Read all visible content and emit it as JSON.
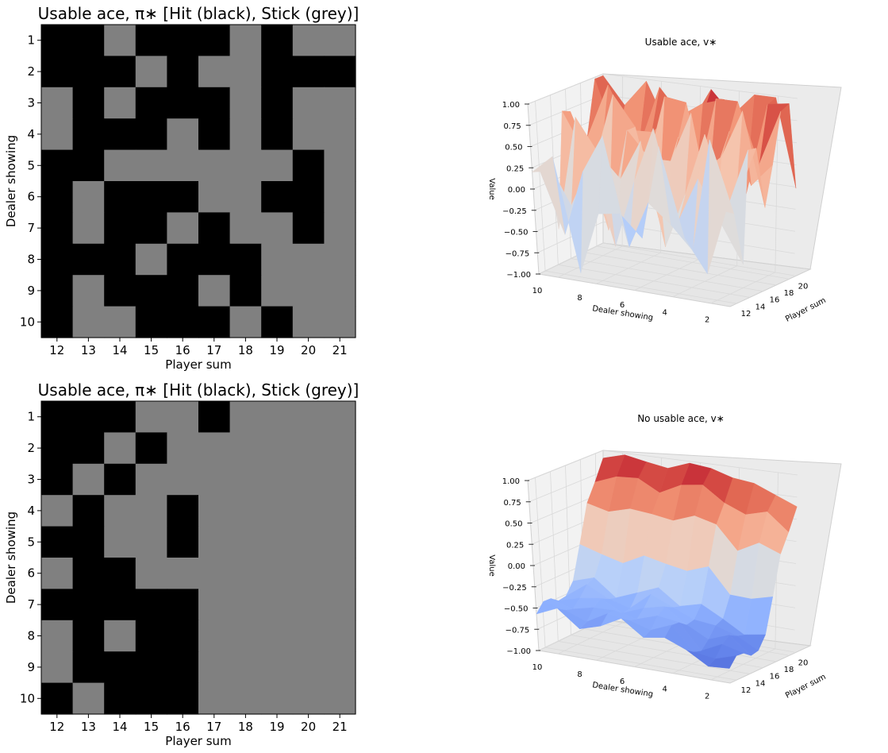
{
  "chart_data": [
    {
      "type": "heatmap",
      "title": "Usable ace, π∗  [Hit (black), Stick (grey)]",
      "xlabel": "Player sum",
      "ylabel": "Dealer showing",
      "x": [
        "12",
        "13",
        "14",
        "15",
        "16",
        "17",
        "18",
        "19",
        "20",
        "21"
      ],
      "y": [
        "1",
        "2",
        "3",
        "4",
        "5",
        "6",
        "7",
        "8",
        "9",
        "10"
      ],
      "legend": {
        "1": "Hit (black)",
        "0": "Stick (grey)"
      },
      "values": [
        [
          1,
          1,
          0,
          1,
          1,
          1,
          0,
          1,
          0,
          0
        ],
        [
          1,
          1,
          1,
          0,
          1,
          0,
          0,
          1,
          1,
          1
        ],
        [
          0,
          1,
          0,
          1,
          1,
          1,
          0,
          1,
          0,
          0
        ],
        [
          0,
          1,
          1,
          1,
          0,
          1,
          0,
          1,
          0,
          0
        ],
        [
          1,
          1,
          0,
          0,
          0,
          0,
          0,
          0,
          1,
          0
        ],
        [
          1,
          0,
          1,
          1,
          1,
          0,
          0,
          1,
          1,
          0
        ],
        [
          1,
          0,
          1,
          1,
          0,
          1,
          0,
          0,
          1,
          0
        ],
        [
          1,
          1,
          1,
          0,
          1,
          1,
          1,
          0,
          0,
          0
        ],
        [
          1,
          0,
          1,
          1,
          1,
          0,
          1,
          0,
          0,
          0
        ],
        [
          1,
          0,
          0,
          1,
          1,
          1,
          0,
          1,
          0,
          0
        ]
      ]
    },
    {
      "type": "surface3d",
      "title": "Usable ace, v∗",
      "xlabel": "Dealer showing",
      "ylabel": "Player sum",
      "zlabel": "Value",
      "x_ticks": [
        "10",
        "8",
        "6",
        "4",
        "2"
      ],
      "y_ticks": [
        "12",
        "14",
        "16",
        "18",
        "20"
      ],
      "z_ticks": [
        "−1.00",
        "−0.75",
        "−0.50",
        "−0.25",
        "0.00",
        "0.25",
        "0.50",
        "0.75",
        "1.00"
      ],
      "zlim": [
        -1,
        1
      ],
      "colormap": "coolwarm"
    },
    {
      "type": "heatmap",
      "title": "Usable ace, π∗  [Hit (black), Stick (grey)]",
      "xlabel": "Player sum",
      "ylabel": "Dealer showing",
      "x": [
        "12",
        "13",
        "14",
        "15",
        "16",
        "17",
        "18",
        "19",
        "20",
        "21"
      ],
      "y": [
        "1",
        "2",
        "3",
        "4",
        "5",
        "6",
        "7",
        "8",
        "9",
        "10"
      ],
      "legend": {
        "1": "Hit (black)",
        "0": "Stick (grey)"
      },
      "values": [
        [
          1,
          1,
          1,
          0,
          0,
          1,
          0,
          0,
          0,
          0
        ],
        [
          1,
          1,
          0,
          1,
          0,
          0,
          0,
          0,
          0,
          0
        ],
        [
          1,
          0,
          1,
          0,
          0,
          0,
          0,
          0,
          0,
          0
        ],
        [
          0,
          1,
          0,
          0,
          1,
          0,
          0,
          0,
          0,
          0
        ],
        [
          1,
          1,
          0,
          0,
          1,
          0,
          0,
          0,
          0,
          0
        ],
        [
          0,
          1,
          1,
          0,
          0,
          0,
          0,
          0,
          0,
          0
        ],
        [
          1,
          1,
          1,
          1,
          1,
          0,
          0,
          0,
          0,
          0
        ],
        [
          0,
          1,
          0,
          1,
          1,
          0,
          0,
          0,
          0,
          0
        ],
        [
          0,
          1,
          1,
          1,
          1,
          0,
          0,
          0,
          0,
          0
        ],
        [
          1,
          0,
          1,
          1,
          1,
          0,
          0,
          0,
          0,
          0
        ]
      ]
    },
    {
      "type": "surface3d",
      "title": "No usable ace, v∗",
      "xlabel": "Dealer showing",
      "ylabel": "Player sum",
      "zlabel": "Value",
      "x_ticks": [
        "10",
        "8",
        "6",
        "4",
        "2"
      ],
      "y_ticks": [
        "12",
        "14",
        "16",
        "18",
        "20"
      ],
      "z_ticks": [
        "−1.00",
        "−0.75",
        "−0.50",
        "−0.25",
        "0.00",
        "0.25",
        "0.50",
        "0.75",
        "1.00"
      ],
      "zlim": [
        -1,
        1
      ],
      "colormap": "coolwarm"
    }
  ],
  "colors": {
    "hit": "#000000",
    "stick": "#808080",
    "pane": "#f2f2f2",
    "grid": "#d9d9d9"
  }
}
